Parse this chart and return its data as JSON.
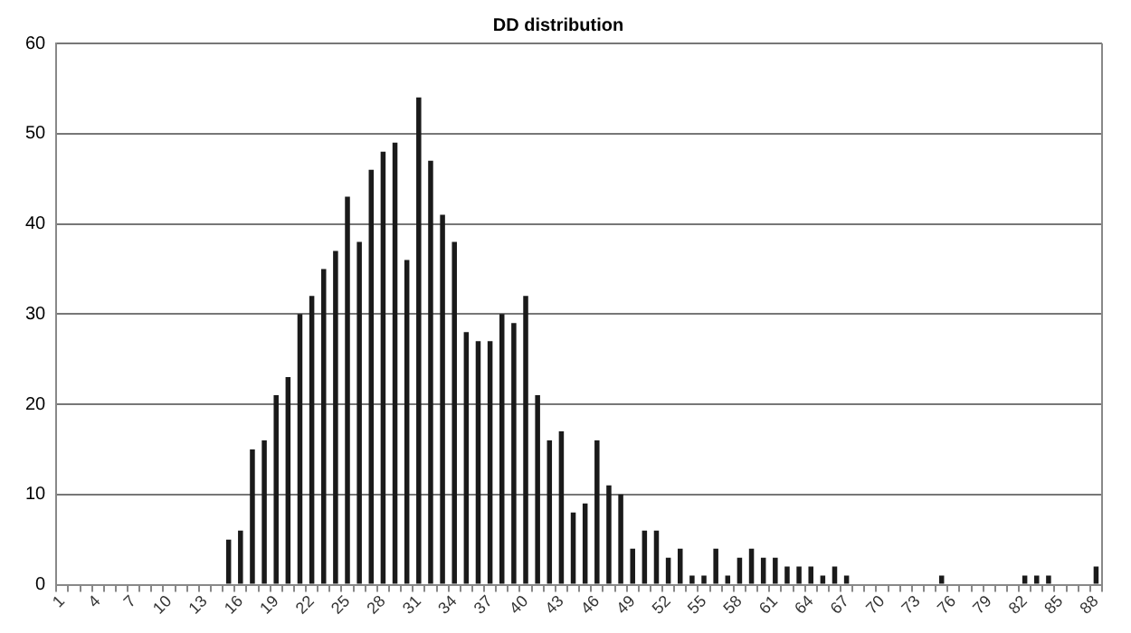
{
  "chart_data": {
    "type": "bar",
    "title": "DD distribution",
    "categories": [
      "1",
      null,
      null,
      "4",
      null,
      null,
      "7",
      null,
      null,
      "10",
      null,
      null,
      "13",
      null,
      null,
      "16",
      null,
      null,
      "19",
      null,
      null,
      "22",
      null,
      null,
      "25",
      null,
      null,
      "28",
      null,
      null,
      "31",
      null,
      null,
      "34",
      null,
      null,
      "37",
      null,
      null,
      "40",
      null,
      null,
      "43",
      null,
      null,
      "46",
      null,
      null,
      "49",
      null,
      null,
      "52",
      null,
      null,
      "55",
      null,
      null,
      "58",
      null,
      null,
      "61",
      null,
      null,
      "64",
      null,
      null,
      "67",
      null,
      null,
      "70",
      null,
      null,
      "73",
      null,
      null,
      "76",
      null,
      null,
      "79",
      null,
      null,
      "82",
      null,
      null,
      "85",
      null,
      null,
      "88"
    ],
    "values": [
      0,
      0,
      0,
      0,
      0,
      0,
      0,
      0,
      0,
      0,
      0,
      0,
      0,
      0,
      5,
      6,
      15,
      16,
      21,
      23,
      30,
      32,
      35,
      37,
      43,
      38,
      46,
      48,
      49,
      36,
      54,
      47,
      41,
      38,
      28,
      27,
      27,
      30,
      29,
      32,
      21,
      16,
      17,
      8,
      9,
      16,
      11,
      10,
      4,
      6,
      6,
      3,
      4,
      1,
      1,
      4,
      1,
      3,
      4,
      3,
      3,
      2,
      2,
      2,
      1,
      2,
      1,
      0,
      0,
      0,
      0,
      0,
      0,
      0,
      1,
      0,
      0,
      0,
      0,
      0,
      0,
      1,
      1,
      1,
      0,
      0,
      0,
      2
    ],
    "color": "#1a1a1a",
    "ylim": [
      0,
      60
    ],
    "yticks": [
      0,
      10,
      20,
      30,
      40,
      50,
      60
    ],
    "grid": "y"
  }
}
